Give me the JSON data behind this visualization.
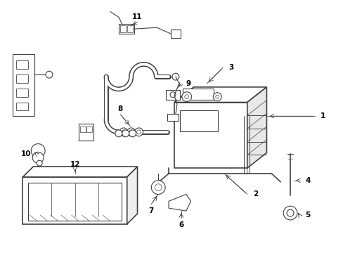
{
  "background_color": "#ffffff",
  "line_color": "#404040",
  "text_color": "#000000",
  "fig_width": 4.89,
  "fig_height": 3.6,
  "dpi": 100
}
